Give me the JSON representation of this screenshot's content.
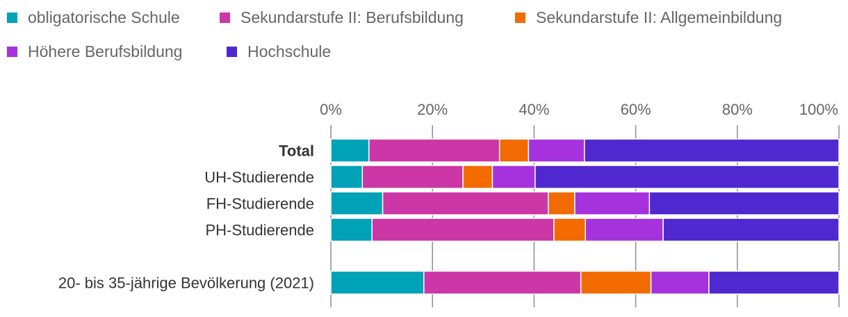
{
  "chart_data": {
    "type": "bar",
    "orientation": "horizontal",
    "stacked": true,
    "categories": [
      "Total",
      "UH-Studierende",
      "FH-Studierende",
      "PH-Studierende",
      "20- bis 35-jährige Bevölkerung (2021)"
    ],
    "bold_categories": [
      "Total"
    ],
    "series": [
      {
        "name": "obligatorische Schule",
        "color": "#00a2b8",
        "values": [
          7.5,
          6.2,
          10.2,
          8.1,
          18.3
        ]
      },
      {
        "name": "Sekundarstufe II: Berufsbildung",
        "color": "#cc36a6",
        "values": [
          25.7,
          19.8,
          32.6,
          35.8,
          30.9
        ]
      },
      {
        "name": "Sekundarstufe II: Allgemeinbildung",
        "color": "#f26b00",
        "values": [
          5.7,
          5.8,
          5.2,
          6.2,
          13.8
        ]
      },
      {
        "name": "Höhere Berufsbildung",
        "color": "#a532dc",
        "values": [
          11.0,
          8.4,
          14.7,
          15.3,
          11.4
        ]
      },
      {
        "name": "Hochschule",
        "color": "#4f28d0",
        "values": [
          50.1,
          59.8,
          37.3,
          34.6,
          25.6
        ]
      }
    ],
    "xlim": [
      0,
      100
    ],
    "ticks": [
      "0%",
      "20%",
      "40%",
      "60%",
      "80%",
      "100%"
    ],
    "tick_values": [
      0,
      20,
      40,
      60,
      80,
      100
    ],
    "legend_position": "top-left",
    "grid": true
  }
}
